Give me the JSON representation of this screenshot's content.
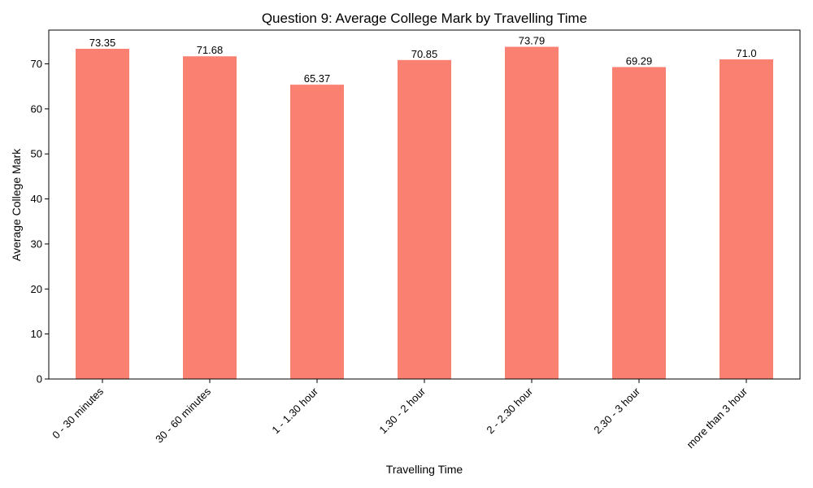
{
  "chart_data": {
    "type": "bar",
    "title": "Question 9: Average College Mark by Travelling Time",
    "xlabel": "Travelling Time",
    "ylabel": "Average College Mark",
    "categories": [
      "0 - 30 minutes",
      "30 - 60 minutes",
      "1 - 1.30 hour",
      "1.30 - 2 hour",
      "2 - 2.30 hour",
      "2.30 - 3 hour",
      "more than 3 hour"
    ],
    "values": [
      73.35,
      71.68,
      65.37,
      70.85,
      73.79,
      69.29,
      71.0
    ],
    "value_labels": [
      "73.35",
      "71.68",
      "65.37",
      "70.85",
      "73.79",
      "69.29",
      "71.0"
    ],
    "ylim": [
      0,
      77.5
    ],
    "yticks": [
      0,
      10,
      20,
      30,
      40,
      50,
      60,
      70
    ],
    "grid": false,
    "bar_color": "#fa8072",
    "axis_color": "#000000"
  }
}
